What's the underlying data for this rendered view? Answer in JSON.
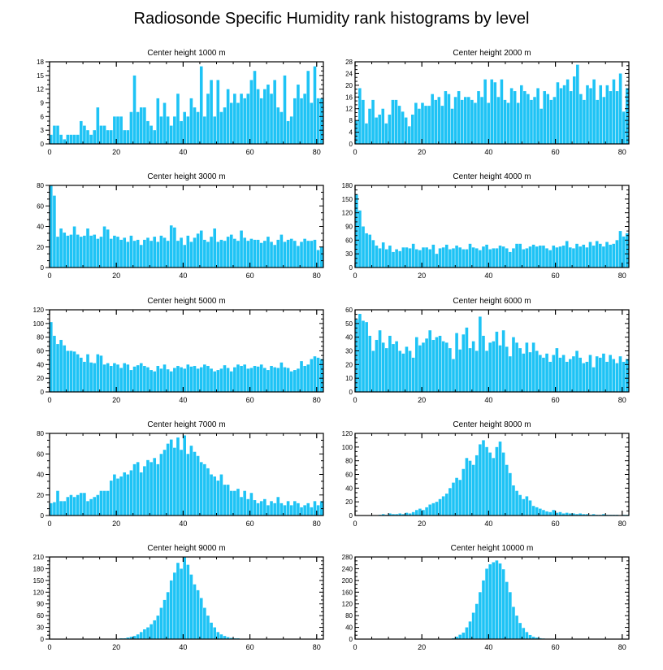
{
  "title": "Radiosonde Specific Humidity rank histograms by level",
  "bar_color": "#1ec3f5",
  "chart_data": [
    {
      "type": "bar",
      "title": "Center height 1000 m",
      "xlim": [
        0,
        82
      ],
      "ylim": [
        0,
        18
      ],
      "yticks": [
        0,
        3,
        6,
        9,
        12,
        15,
        18
      ],
      "xticks": [
        0,
        20,
        40,
        60,
        80
      ],
      "tick_side": "left",
      "values": [
        2,
        4,
        4,
        2,
        1,
        2,
        2,
        2,
        2,
        5,
        4,
        3,
        2,
        3,
        8,
        4,
        4,
        3,
        3,
        6,
        6,
        6,
        3,
        3,
        7,
        15,
        7,
        8,
        8,
        5,
        4,
        3,
        10,
        6,
        9,
        6,
        4,
        6,
        11,
        5,
        7,
        6,
        10,
        8,
        7,
        17,
        6,
        11,
        14,
        6,
        14,
        7,
        8,
        12,
        9,
        11,
        9,
        11,
        10,
        11,
        14,
        16,
        12,
        10,
        12,
        13,
        11,
        14,
        8,
        7,
        15,
        5,
        6,
        10,
        13,
        10,
        11,
        16,
        9,
        17,
        10,
        10
      ]
    },
    {
      "type": "bar",
      "title": "Center height 2000 m",
      "xlim": [
        0,
        82
      ],
      "ylim": [
        0,
        28
      ],
      "yticks": [
        0,
        4,
        8,
        12,
        16,
        20,
        24,
        28
      ],
      "xticks": [
        0,
        20,
        40,
        60,
        80
      ],
      "tick_side": "right",
      "values": [
        8,
        19,
        15,
        7,
        12,
        15,
        9,
        10,
        12,
        7,
        10,
        15,
        15,
        13,
        11,
        9,
        6,
        10,
        14,
        12,
        14,
        13,
        13,
        17,
        15,
        16,
        13,
        18,
        17,
        12,
        16,
        18,
        15,
        16,
        16,
        15,
        14,
        18,
        16,
        22,
        14,
        22,
        21,
        16,
        22,
        15,
        14,
        19,
        18,
        14,
        20,
        18,
        17,
        15,
        16,
        19,
        12,
        18,
        17,
        15,
        16,
        21,
        19,
        20,
        22,
        18,
        23,
        27,
        17,
        15,
        20,
        19,
        22,
        15,
        20,
        16,
        20,
        18,
        22,
        18,
        24,
        11,
        19
      ]
    },
    {
      "type": "bar",
      "title": "Center height 3000 m",
      "xlim": [
        0,
        82
      ],
      "ylim": [
        0,
        80
      ],
      "yticks": [
        0,
        20,
        40,
        60,
        80
      ],
      "xticks": [
        0,
        20,
        40,
        60,
        80
      ],
      "tick_side": "left",
      "values": [
        80,
        70,
        30,
        38,
        34,
        31,
        32,
        40,
        32,
        30,
        31,
        38,
        31,
        32,
        28,
        30,
        40,
        37,
        28,
        31,
        30,
        27,
        29,
        25,
        31,
        26,
        27,
        22,
        27,
        29,
        26,
        30,
        25,
        31,
        29,
        26,
        41,
        39,
        26,
        29,
        22,
        31,
        25,
        29,
        33,
        36,
        27,
        25,
        30,
        38,
        25,
        27,
        26,
        30,
        32,
        28,
        26,
        36,
        29,
        26,
        28,
        27,
        27,
        24,
        26,
        30,
        25,
        22,
        27,
        32,
        25,
        27,
        28,
        26,
        21,
        25,
        28,
        26,
        26,
        27,
        17,
        20
      ]
    },
    {
      "type": "bar",
      "title": "Center height 4000 m",
      "xlim": [
        0,
        82
      ],
      "ylim": [
        0,
        180
      ],
      "yticks": [
        0,
        30,
        60,
        90,
        120,
        150,
        180
      ],
      "xticks": [
        0,
        20,
        40,
        60,
        80
      ],
      "tick_side": "right",
      "values": [
        160,
        125,
        90,
        75,
        72,
        60,
        48,
        42,
        55,
        40,
        48,
        34,
        40,
        36,
        44,
        44,
        42,
        52,
        40,
        38,
        44,
        44,
        40,
        50,
        30,
        42,
        44,
        50,
        40,
        42,
        48,
        44,
        40,
        40,
        52,
        44,
        42,
        38,
        46,
        50,
        40,
        42,
        42,
        48,
        46,
        42,
        34,
        42,
        52,
        52,
        40,
        42,
        46,
        50,
        46,
        48,
        48,
        42,
        38,
        48,
        44,
        46,
        48,
        58,
        44,
        42,
        52,
        46,
        50,
        44,
        56,
        48,
        58,
        52,
        46,
        56,
        50,
        52,
        60,
        80,
        68,
        75
      ]
    },
    {
      "type": "bar",
      "title": "Center height 5000 m",
      "xlim": [
        0,
        82
      ],
      "ylim": [
        0,
        120
      ],
      "yticks": [
        0,
        20,
        40,
        60,
        80,
        100,
        120
      ],
      "xticks": [
        0,
        20,
        40,
        60,
        80
      ],
      "tick_side": "left",
      "values": [
        102,
        82,
        70,
        76,
        68,
        60,
        60,
        59,
        55,
        50,
        44,
        55,
        43,
        42,
        55,
        53,
        40,
        42,
        38,
        42,
        40,
        35,
        42,
        40,
        32,
        37,
        39,
        42,
        38,
        36,
        32,
        30,
        38,
        34,
        40,
        33,
        30,
        35,
        38,
        36,
        34,
        40,
        37,
        38,
        34,
        36,
        40,
        38,
        34,
        30,
        32,
        34,
        39,
        35,
        30,
        36,
        40,
        38,
        40,
        34,
        35,
        38,
        37,
        40,
        35,
        32,
        38,
        36,
        35,
        43,
        36,
        35,
        30,
        32,
        34,
        45,
        38,
        40,
        48,
        52,
        50,
        48
      ]
    },
    {
      "type": "bar",
      "title": "Center height 6000 m",
      "xlim": [
        0,
        82
      ],
      "ylim": [
        0,
        60
      ],
      "yticks": [
        0,
        10,
        20,
        30,
        40,
        50,
        60
      ],
      "xticks": [
        0,
        20,
        40,
        60,
        80
      ],
      "tick_side": "right",
      "values": [
        53,
        57,
        52,
        51,
        41,
        30,
        38,
        45,
        36,
        32,
        41,
        35,
        37,
        30,
        28,
        33,
        30,
        25,
        40,
        34,
        36,
        39,
        45,
        38,
        40,
        41,
        37,
        36,
        32,
        24,
        43,
        31,
        42,
        47,
        32,
        37,
        30,
        55,
        41,
        30,
        36,
        37,
        44,
        34,
        45,
        33,
        26,
        40,
        36,
        32,
        28,
        36,
        29,
        36,
        30,
        27,
        25,
        28,
        22,
        27,
        32,
        25,
        27,
        22,
        24,
        26,
        30,
        25,
        21,
        22,
        27,
        18,
        26,
        25,
        28,
        22,
        27,
        24,
        21,
        26,
        22,
        24
      ]
    },
    {
      "type": "bar",
      "title": "Center height 7000 m",
      "xlim": [
        0,
        82
      ],
      "ylim": [
        0,
        80
      ],
      "yticks": [
        0,
        20,
        40,
        60,
        80
      ],
      "xticks": [
        0,
        20,
        40,
        60,
        80
      ],
      "tick_side": "left",
      "values": [
        12,
        13,
        24,
        14,
        14,
        18,
        20,
        18,
        20,
        22,
        22,
        14,
        16,
        18,
        20,
        24,
        24,
        24,
        34,
        40,
        36,
        38,
        42,
        40,
        44,
        50,
        52,
        42,
        48,
        54,
        52,
        56,
        50,
        60,
        64,
        70,
        74,
        66,
        76,
        64,
        78,
        60,
        68,
        62,
        58,
        52,
        50,
        46,
        40,
        38,
        34,
        40,
        30,
        30,
        24,
        24,
        26,
        18,
        24,
        16,
        22,
        15,
        12,
        14,
        16,
        10,
        14,
        12,
        18,
        12,
        10,
        14,
        10,
        14,
        12,
        8,
        10,
        12,
        8,
        14,
        10,
        14
      ]
    },
    {
      "type": "bar",
      "title": "Center height 8000 m",
      "xlim": [
        0,
        82
      ],
      "ylim": [
        0,
        120
      ],
      "yticks": [
        0,
        20,
        40,
        60,
        80,
        100,
        120
      ],
      "xticks": [
        0,
        20,
        40,
        60,
        80
      ],
      "tick_side": "right",
      "values": [
        0,
        0,
        0,
        0,
        0,
        0,
        0,
        1,
        2,
        1,
        3,
        2,
        2,
        3,
        2,
        4,
        3,
        5,
        8,
        10,
        8,
        12,
        16,
        18,
        20,
        24,
        28,
        32,
        40,
        48,
        55,
        52,
        68,
        84,
        80,
        74,
        88,
        104,
        110,
        100,
        92,
        84,
        100,
        108,
        92,
        74,
        62,
        44,
        36,
        30,
        24,
        28,
        22,
        14,
        12,
        10,
        8,
        6,
        5,
        8,
        4,
        5,
        3,
        4,
        3,
        3,
        2,
        3,
        2,
        2,
        1,
        2,
        1,
        1,
        2,
        1,
        1,
        1,
        1,
        0,
        1,
        1
      ]
    },
    {
      "type": "bar",
      "title": "Center height 9000 m",
      "xlim": [
        0,
        82
      ],
      "ylim": [
        0,
        210
      ],
      "yticks": [
        0,
        30,
        60,
        90,
        120,
        150,
        180,
        210
      ],
      "xticks": [
        0,
        20,
        40,
        60,
        80
      ],
      "tick_side": "left",
      "values": [
        0,
        0,
        0,
        0,
        0,
        0,
        0,
        0,
        0,
        0,
        0,
        0,
        0,
        0,
        0,
        0,
        0,
        0,
        0,
        1,
        1,
        2,
        2,
        4,
        6,
        8,
        12,
        18,
        25,
        30,
        38,
        48,
        60,
        80,
        100,
        120,
        150,
        170,
        195,
        180,
        210,
        190,
        165,
        140,
        125,
        105,
        80,
        60,
        42,
        30,
        18,
        12,
        8,
        5,
        3,
        2,
        2,
        1,
        1,
        0,
        0,
        0,
        0,
        0,
        0,
        0,
        0,
        0,
        0,
        0,
        0,
        0,
        0,
        0,
        0,
        0,
        0,
        0,
        0,
        0,
        0,
        0
      ]
    },
    {
      "type": "bar",
      "title": "Center height 10000 m",
      "xlim": [
        0,
        82
      ],
      "ylim": [
        0,
        280
      ],
      "yticks": [
        0,
        40,
        80,
        120,
        160,
        200,
        240,
        280
      ],
      "xticks": [
        0,
        20,
        40,
        60,
        80
      ],
      "tick_side": "right",
      "values": [
        0,
        0,
        0,
        0,
        0,
        0,
        0,
        0,
        0,
        0,
        0,
        0,
        0,
        0,
        0,
        0,
        0,
        0,
        0,
        0,
        0,
        0,
        0,
        0,
        0,
        0,
        0,
        0,
        1,
        3,
        8,
        15,
        22,
        40,
        60,
        90,
        120,
        160,
        200,
        240,
        255,
        262,
        268,
        258,
        238,
        195,
        160,
        110,
        80,
        55,
        38,
        24,
        14,
        8,
        5,
        3,
        2,
        1,
        1,
        0,
        0,
        0,
        0,
        0,
        0,
        0,
        0,
        0,
        0,
        0,
        0,
        0,
        0,
        0,
        0,
        0,
        0,
        0,
        0,
        0,
        0,
        0
      ]
    }
  ]
}
